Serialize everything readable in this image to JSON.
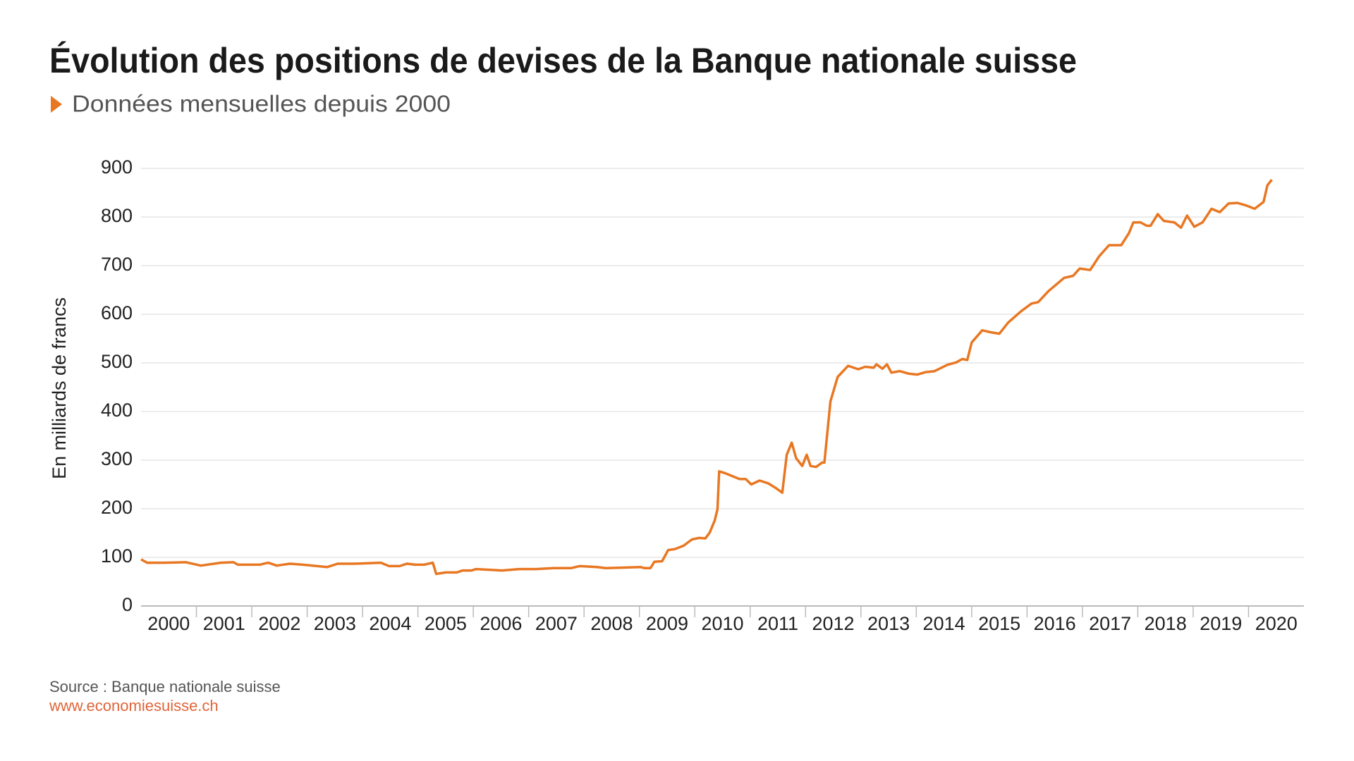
{
  "chart_data": {
    "type": "line",
    "title": "Évolution des positions de devises de la Banque nationale suisse",
    "subtitle": "Données mensuelles depuis 2000",
    "y_label": "En milliards de francs",
    "source": "Source : Banque nationale suisse",
    "url": "www.economiesuisse.ch",
    "ylim": [
      0,
      900
    ],
    "yticks": [
      0,
      100,
      200,
      300,
      400,
      500,
      600,
      700,
      800,
      900
    ],
    "xlim": [
      2000,
      2021
    ],
    "xticks": [
      {
        "value": 2000.5,
        "label": "2000"
      },
      {
        "value": 2001.5,
        "label": "2001"
      },
      {
        "value": 2002.5,
        "label": "2002"
      },
      {
        "value": 2003.5,
        "label": "2003"
      },
      {
        "value": 2004.5,
        "label": "2004"
      },
      {
        "value": 2005.5,
        "label": "2005"
      },
      {
        "value": 2006.5,
        "label": "2006"
      },
      {
        "value": 2007.5,
        "label": "2007"
      },
      {
        "value": 2008.5,
        "label": "2008"
      },
      {
        "value": 2009.5,
        "label": "2009"
      },
      {
        "value": 2010.5,
        "label": "2010"
      },
      {
        "value": 2011.5,
        "label": "2011"
      },
      {
        "value": 2012.5,
        "label": "2012"
      },
      {
        "value": 2013.5,
        "label": "2013"
      },
      {
        "value": 2014.5,
        "label": "2014"
      },
      {
        "value": 2015.5,
        "label": "2015"
      },
      {
        "value": 2016.5,
        "label": "2016"
      },
      {
        "value": 2017.5,
        "label": "2017"
      },
      {
        "value": 2018.5,
        "label": "2018"
      },
      {
        "value": 2019.5,
        "label": "2019"
      },
      {
        "value": 2020.5,
        "label": "2020"
      }
    ],
    "grid": true,
    "color": "#e87722",
    "x": [
      2000.0,
      2000.11,
      2000.42,
      2000.81,
      2001.08,
      2001.44,
      2001.67,
      2001.75,
      2002.14,
      2002.3,
      2002.45,
      2002.69,
      2002.92,
      2003.36,
      2003.55,
      2003.86,
      2004.33,
      2004.48,
      2004.67,
      2004.8,
      2004.95,
      2005.11,
      2005.27,
      2005.33,
      2005.5,
      2005.7,
      2005.81,
      2005.97,
      2006.05,
      2006.2,
      2006.52,
      2006.83,
      2007.14,
      2007.45,
      2007.77,
      2007.92,
      2008.23,
      2008.39,
      2009.02,
      2009.09,
      2009.2,
      2009.27,
      2009.41,
      2009.52,
      2009.64,
      2009.8,
      2009.95,
      2010.08,
      2010.19,
      2010.27,
      2010.36,
      2010.41,
      2010.44,
      2010.55,
      2010.66,
      2010.81,
      2010.92,
      2011.02,
      2011.17,
      2011.33,
      2011.47,
      2011.58,
      2011.66,
      2011.75,
      2011.83,
      2011.94,
      2012.02,
      2012.09,
      2012.19,
      2012.3,
      2012.34,
      2012.45,
      2012.58,
      2012.77,
      2012.95,
      2013.08,
      2013.23,
      2013.28,
      2013.39,
      2013.47,
      2013.55,
      2013.7,
      2013.86,
      2014.02,
      2014.17,
      2014.33,
      2014.56,
      2014.72,
      2014.83,
      2014.92,
      2015.0,
      2015.19,
      2015.34,
      2015.5,
      2015.66,
      2015.89,
      2016.08,
      2016.2,
      2016.39,
      2016.67,
      2016.83,
      2016.95,
      2017.14,
      2017.3,
      2017.48,
      2017.7,
      2017.84,
      2017.92,
      2018.05,
      2018.16,
      2018.23,
      2018.36,
      2018.47,
      2018.66,
      2018.78,
      2018.89,
      2019.02,
      2019.17,
      2019.33,
      2019.48,
      2019.64,
      2019.8,
      2019.95,
      2020.11,
      2020.27,
      2020.34,
      2020.42
    ],
    "values": [
      96,
      89,
      89,
      90,
      83,
      89,
      90,
      85,
      85,
      89,
      83,
      87,
      85,
      80,
      87,
      87,
      89,
      82,
      82,
      87,
      85,
      85,
      89,
      66,
      69,
      69,
      73,
      73,
      76,
      75,
      73,
      76,
      76,
      78,
      78,
      82,
      80,
      78,
      80,
      78,
      78,
      91,
      92,
      115,
      117,
      124,
      137,
      140,
      139,
      151,
      176,
      199,
      277,
      273,
      268,
      261,
      261,
      250,
      258,
      252,
      242,
      233,
      311,
      336,
      304,
      288,
      311,
      288,
      286,
      295,
      295,
      421,
      471,
      494,
      487,
      492,
      490,
      497,
      488,
      497,
      480,
      483,
      478,
      476,
      481,
      483,
      496,
      501,
      508,
      506,
      542,
      567,
      563,
      560,
      583,
      606,
      622,
      625,
      648,
      675,
      679,
      694,
      691,
      719,
      742,
      742,
      767,
      789,
      789,
      782,
      782,
      806,
      792,
      789,
      778,
      803,
      780,
      789,
      817,
      810,
      828,
      829,
      824,
      817,
      831,
      865,
      877
    ]
  }
}
